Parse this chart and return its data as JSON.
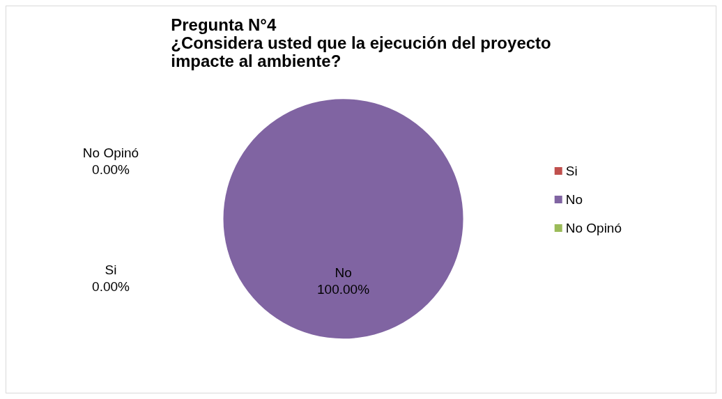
{
  "chart_data": {
    "type": "pie",
    "title": "Pregunta N°4\n¿Considera usted que la ejecución del proyecto\nimpacte al ambiente?",
    "categories": [
      "Si",
      "No",
      "No Opinó"
    ],
    "values": [
      0,
      100,
      0
    ],
    "value_labels": [
      "0.00%",
      "100.00%",
      "0.00%"
    ],
    "colors": [
      "#c0504d",
      "#8064a2",
      "#9bbb59"
    ],
    "legend": "right"
  }
}
